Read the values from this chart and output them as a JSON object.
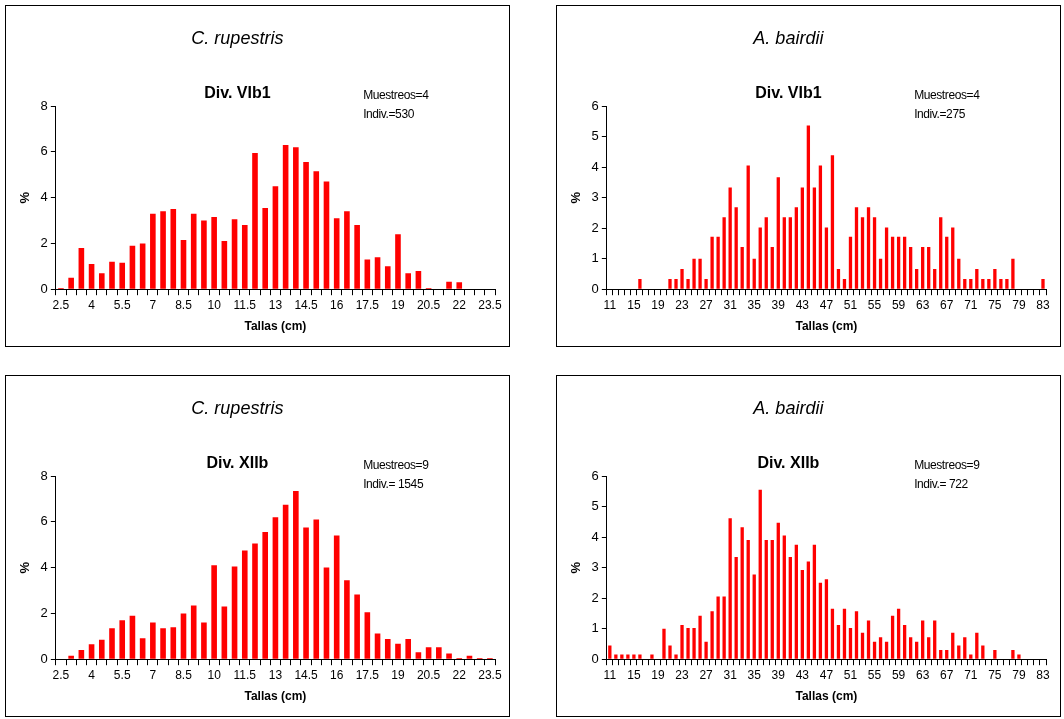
{
  "chart_data": [
    {
      "type": "bar",
      "title": "C. rupestris",
      "subtitle": "Div. VIb1",
      "annotations": [
        "Muestreos=4",
        "Indiv.=530"
      ],
      "xlabel": "Tallas (cm)",
      "ylabel": "%",
      "color": "#ff0000",
      "ylim": [
        0,
        8
      ],
      "yticks": [
        0,
        2,
        4,
        6,
        8
      ],
      "categories": [
        "2.5",
        null,
        null,
        "4",
        null,
        null,
        "5.5",
        null,
        null,
        "7",
        null,
        null,
        "8.5",
        null,
        null,
        "10",
        null,
        null,
        "11.5",
        null,
        null,
        "13",
        null,
        null,
        "14.5",
        null,
        null,
        "16",
        null,
        null,
        "17.5",
        null,
        null,
        "19",
        null,
        null,
        "20.5",
        null,
        null,
        "22",
        null,
        null,
        "23.5"
      ],
      "values": [
        0.05,
        0.5,
        1.8,
        1.1,
        0.7,
        1.2,
        1.15,
        1.9,
        2.0,
        3.3,
        3.4,
        3.5,
        2.15,
        3.3,
        3.0,
        3.15,
        2.1,
        3.05,
        2.8,
        5.95,
        3.55,
        4.5,
        6.3,
        6.2,
        5.55,
        5.15,
        4.7,
        3.1,
        3.4,
        2.8,
        1.3,
        1.4,
        1.0,
        2.4,
        0.7,
        0.8,
        0.05,
        0,
        0.33,
        0.3,
        0,
        0,
        0
      ]
    },
    {
      "type": "bar",
      "title": "A. bairdii",
      "subtitle": "Div. VIb1",
      "annotations": [
        "Muestreos=4",
        "Indiv.=275"
      ],
      "xlabel": "Tallas (cm)",
      "ylabel": "%",
      "color": "#ff0000",
      "ylim": [
        0,
        6
      ],
      "yticks": [
        0,
        1,
        2,
        3,
        4,
        5,
        6
      ],
      "categories": [
        "11",
        null,
        null,
        null,
        "15",
        null,
        null,
        null,
        "19",
        null,
        null,
        null,
        "23",
        null,
        null,
        null,
        "27",
        null,
        null,
        null,
        "31",
        null,
        null,
        null,
        "35",
        null,
        null,
        null,
        "39",
        null,
        null,
        null,
        "43",
        null,
        null,
        null,
        "47",
        null,
        null,
        null,
        "51",
        null,
        null,
        null,
        "55",
        null,
        null,
        null,
        "59",
        null,
        null,
        null,
        "63",
        null,
        null,
        null,
        "67",
        null,
        null,
        null,
        "71",
        null,
        null,
        null,
        "75",
        null,
        null,
        null,
        "79",
        null,
        null,
        null,
        "83"
      ],
      "values": [
        0,
        0,
        0,
        0,
        0,
        0.33,
        0,
        0,
        0,
        0,
        0.33,
        0.33,
        0.66,
        0.33,
        1.0,
        1.0,
        0.33,
        1.72,
        1.72,
        2.36,
        3.33,
        2.68,
        1.38,
        4.05,
        1.0,
        2.02,
        2.36,
        1.38,
        3.67,
        2.36,
        2.36,
        2.68,
        3.33,
        5.36,
        3.33,
        4.05,
        2.02,
        4.39,
        0.66,
        0.33,
        1.72,
        2.68,
        2.36,
        2.68,
        2.36,
        1.0,
        2.02,
        1.72,
        1.72,
        1.72,
        1.38,
        0.66,
        1.38,
        1.38,
        0.66,
        2.36,
        1.72,
        2.02,
        1.0,
        0.33,
        0.33,
        0.66,
        0.33,
        0.33,
        0.66,
        0.33,
        0.33,
        1.0,
        0,
        0,
        0,
        0,
        0.33
      ]
    },
    {
      "type": "bar",
      "title": "C. rupestris",
      "subtitle": "Div. XIIb",
      "annotations": [
        "Muestreos=9",
        "Indiv.= 1545"
      ],
      "xlabel": "Tallas (cm)",
      "ylabel": "%",
      "color": "#ff0000",
      "ylim": [
        0,
        8
      ],
      "yticks": [
        0,
        2,
        4,
        6,
        8
      ],
      "categories": [
        "2.5",
        null,
        null,
        "4",
        null,
        null,
        "5.5",
        null,
        null,
        "7",
        null,
        null,
        "8.5",
        null,
        null,
        "10",
        null,
        null,
        "11.5",
        null,
        null,
        "13",
        null,
        null,
        "14.5",
        null,
        null,
        "16",
        null,
        null,
        "17.5",
        null,
        null,
        "19",
        null,
        null,
        "20.5",
        null,
        null,
        "22",
        null,
        null,
        "23.5"
      ],
      "values": [
        0,
        0.15,
        0.4,
        0.65,
        0.85,
        1.35,
        1.7,
        1.9,
        0.92,
        1.6,
        1.35,
        1.4,
        2.0,
        2.35,
        1.6,
        4.1,
        2.3,
        4.05,
        4.75,
        5.05,
        5.55,
        6.2,
        6.75,
        7.35,
        5.75,
        6.1,
        4.0,
        5.4,
        3.45,
        2.82,
        2.05,
        1.12,
        0.88,
        0.68,
        0.88,
        0.3,
        0.52,
        0.52,
        0.25,
        0.05,
        0.15,
        0.05,
        0.05
      ]
    },
    {
      "type": "bar",
      "title": "A. bairdii",
      "subtitle": "Div. XIIb",
      "annotations": [
        "Muestreos=9",
        "Indiv.= 722"
      ],
      "xlabel": "Tallas (cm)",
      "ylabel": "%",
      "color": "#ff0000",
      "ylim": [
        0,
        6
      ],
      "yticks": [
        0,
        1,
        2,
        3,
        4,
        5,
        6
      ],
      "categories": [
        "11",
        null,
        null,
        null,
        "15",
        null,
        null,
        null,
        "19",
        null,
        null,
        null,
        "23",
        null,
        null,
        null,
        "27",
        null,
        null,
        null,
        "31",
        null,
        null,
        null,
        "35",
        null,
        null,
        null,
        "39",
        null,
        null,
        null,
        "43",
        null,
        null,
        null,
        "47",
        null,
        null,
        null,
        "51",
        null,
        null,
        null,
        "55",
        null,
        null,
        null,
        "59",
        null,
        null,
        null,
        "63",
        null,
        null,
        null,
        "67",
        null,
        null,
        null,
        "71",
        null,
        null,
        null,
        "75",
        null,
        null,
        null,
        "79",
        null,
        null,
        null,
        "83"
      ],
      "values": [
        0.45,
        0.15,
        0.15,
        0.15,
        0.15,
        0.15,
        0,
        0.15,
        0,
        1.0,
        0.45,
        0.15,
        1.12,
        1.02,
        1.02,
        1.42,
        0.57,
        1.57,
        2.05,
        2.05,
        4.62,
        3.35,
        4.32,
        3.9,
        2.77,
        5.55,
        3.9,
        3.9,
        4.47,
        4.05,
        3.35,
        3.75,
        2.92,
        3.2,
        3.75,
        2.5,
        2.62,
        1.65,
        1.12,
        1.65,
        1.02,
        1.57,
        0.87,
        1.27,
        0.57,
        0.72,
        0.57,
        1.42,
        1.65,
        1.12,
        0.72,
        0.57,
        1.27,
        0.72,
        1.27,
        0.3,
        0.3,
        0.87,
        0.45,
        0.72,
        0.15,
        0.87,
        0.45,
        0,
        0.3,
        0,
        0,
        0.3,
        0.15,
        0,
        0,
        0,
        0
      ]
    }
  ]
}
